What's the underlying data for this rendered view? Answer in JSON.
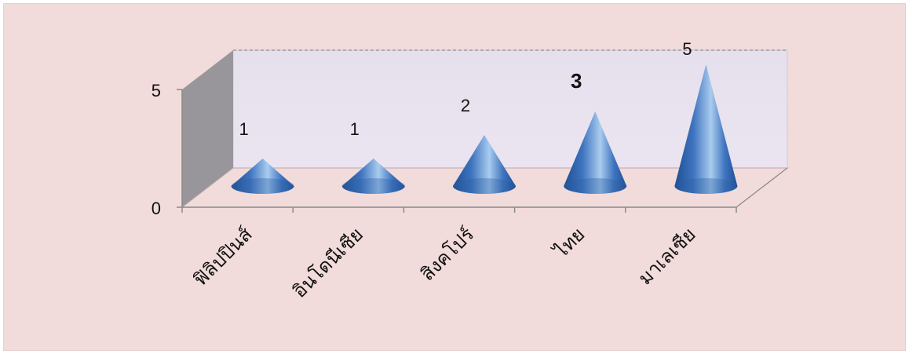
{
  "chart_data": {
    "type": "bar",
    "style": "3d-cone",
    "categories": [
      "ฟิลิปปินส์",
      "อินโดนีเซีย",
      "สิงคโปร์",
      "ไทย",
      "มาเลเซีย"
    ],
    "values": [
      1,
      1,
      2,
      3,
      5
    ],
    "data_labels": [
      "1",
      "1",
      "2",
      "3",
      "5"
    ],
    "emphasized_label_index": 3,
    "ylim": [
      0,
      5
    ],
    "yticks": [
      "0",
      "5"
    ],
    "grid": false,
    "legend": "none",
    "colors": {
      "background": "#f2dbdb",
      "back_wall": "#e6e0ee",
      "side_wall": "#99969b",
      "floor": "#f2dbdb",
      "cone_dark": "#1f4f94",
      "cone_mid": "#3f74bf",
      "cone_light": "#a9ccef"
    }
  }
}
